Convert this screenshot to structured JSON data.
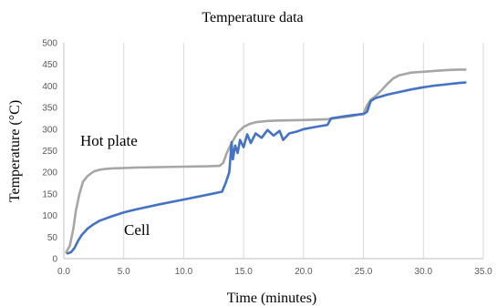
{
  "chart_data": {
    "type": "line",
    "title": "Temperature data",
    "xlabel": "Time (minutes)",
    "ylabel": "Temperature (°C)",
    "xlim": [
      0,
      35
    ],
    "ylim": [
      0,
      500
    ],
    "xticks": [
      "0.0",
      "5.0",
      "10.0",
      "15.0",
      "20.0",
      "25.0",
      "30.0",
      "35.0"
    ],
    "yticks": [
      "0",
      "50",
      "100",
      "150",
      "200",
      "250",
      "300",
      "350",
      "400",
      "450",
      "500"
    ],
    "grid": "vertical",
    "annotations": [
      "Hot plate",
      "Cell"
    ],
    "series": [
      {
        "name": "Hot plate",
        "color": "#a6a6a6",
        "x": [
          0.2,
          0.5,
          0.8,
          1.0,
          1.3,
          1.6,
          2.0,
          2.5,
          3.0,
          3.5,
          4.0,
          5.0,
          6.0,
          8.0,
          10.0,
          12.0,
          13.0,
          13.3,
          13.6,
          14.0,
          14.5,
          15.0,
          15.5,
          16.0,
          17.0,
          18.0,
          20.0,
          22.0,
          24.0,
          25.0,
          25.3,
          25.6,
          26.0,
          26.5,
          27.0,
          27.5,
          28.0,
          29.0,
          30.0,
          31.0,
          32.0,
          33.0,
          33.5
        ],
        "values": [
          15,
          30,
          70,
          110,
          150,
          178,
          192,
          202,
          206,
          208,
          209,
          210,
          211,
          212,
          213,
          214,
          215,
          222,
          245,
          268,
          292,
          305,
          312,
          316,
          319,
          320,
          321,
          323,
          330,
          336,
          355,
          368,
          376,
          390,
          405,
          418,
          425,
          431,
          433,
          435,
          437,
          438,
          438
        ]
      },
      {
        "name": "Cell",
        "color": "#4472c4",
        "x": [
          0.3,
          0.6,
          0.9,
          1.2,
          1.5,
          2.0,
          2.5,
          3.0,
          4.0,
          5.0,
          6.0,
          8.0,
          10.0,
          12.0,
          13.2,
          13.5,
          13.8,
          14.0,
          14.1,
          14.3,
          14.5,
          14.7,
          15.0,
          15.3,
          15.6,
          16.0,
          16.5,
          17.0,
          17.5,
          18.0,
          18.3,
          18.8,
          19.5,
          20.0,
          21.0,
          22.0,
          22.3,
          23.0,
          24.0,
          25.0,
          25.3,
          25.6,
          26.0,
          27.0,
          28.0,
          29.0,
          30.0,
          31.0,
          32.0,
          33.0,
          33.5
        ],
        "values": [
          12,
          15,
          25,
          42,
          55,
          70,
          80,
          88,
          98,
          107,
          114,
          126,
          137,
          148,
          155,
          175,
          200,
          270,
          230,
          262,
          245,
          275,
          258,
          288,
          268,
          290,
          280,
          298,
          285,
          296,
          275,
          290,
          295,
          300,
          305,
          310,
          325,
          328,
          332,
          335,
          340,
          365,
          372,
          380,
          386,
          392,
          397,
          401,
          404,
          407,
          408
        ]
      }
    ]
  }
}
